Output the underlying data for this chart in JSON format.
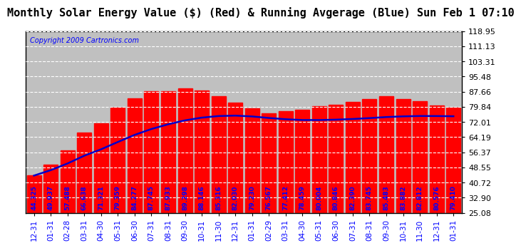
{
  "title": "Monthly Solar Energy Value ($) (Red) & Running Avgerage (Blue) Sun Feb 1 07:10",
  "copyright": "Copyright 2009 Cartronics.com",
  "categories": [
    "12-31",
    "01-31",
    "02-28",
    "03-31",
    "04-30",
    "05-31",
    "06-30",
    "07-31",
    "08-31",
    "09-30",
    "10-31",
    "11-30",
    "12-31",
    "01-31",
    "02-29",
    "03-31",
    "04-30",
    "05-31",
    "06-30",
    "07-31",
    "08-31",
    "09-30",
    "10-31",
    "11-30",
    "12-31",
    "01-31"
  ],
  "bar_values": [
    44.325,
    49.937,
    57.488,
    66.638,
    71.321,
    79.359,
    84.277,
    87.745,
    87.933,
    89.298,
    88.146,
    85.316,
    82.03,
    79.23,
    76.567,
    77.412,
    78.459,
    80.004,
    80.846,
    82.39,
    83.745,
    85.483,
    83.882,
    82.812,
    80.576,
    79.41
  ],
  "running_avg": [
    44.325,
    47.131,
    50.583,
    54.597,
    57.902,
    61.678,
    65.335,
    68.376,
    70.803,
    72.833,
    74.238,
    75.062,
    75.282,
    74.856,
    74.069,
    73.414,
    73.014,
    73.005,
    73.205,
    73.548,
    74.006,
    74.543,
    74.891,
    75.085,
    75.06,
    74.947
  ],
  "ylim": [
    25.08,
    118.95
  ],
  "yticks": [
    25.08,
    32.9,
    40.72,
    48.55,
    56.37,
    64.19,
    72.01,
    79.84,
    87.66,
    95.48,
    103.31,
    111.13,
    118.95
  ],
  "bar_color": "#FF0000",
  "line_color": "#0000CC",
  "label_color": "#0000FF",
  "background_color": "#FFFFFF",
  "grid_color": "#FFFFFF",
  "plot_bg_color": "#C0C0C0",
  "title_fontsize": 11,
  "copyright_fontsize": 7,
  "bar_label_fontsize": 6.5,
  "tick_label_fontsize": 7.5,
  "ytick_fontsize": 8
}
